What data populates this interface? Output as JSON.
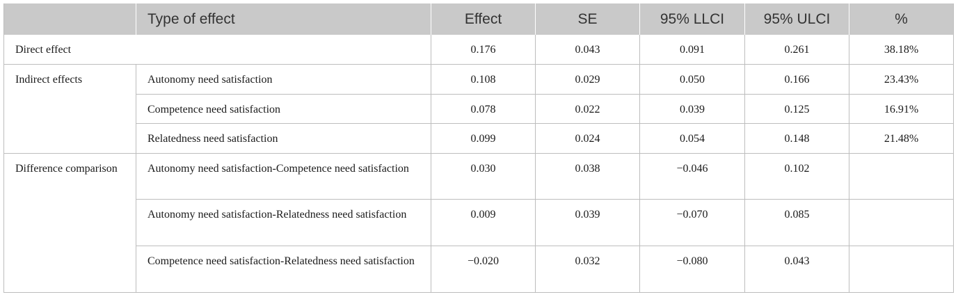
{
  "headers": [
    "",
    "Type of effect",
    "Effect",
    "SE",
    "95% LLCI",
    "95% ULCI",
    "%"
  ],
  "direct": {
    "label": "Direct effect",
    "values": [
      "0.176",
      "0.043",
      "0.091",
      "0.261",
      "38.18%"
    ]
  },
  "indirect": {
    "label": "Indirect effects",
    "rows": [
      {
        "type": "Autonomy need satisfaction",
        "values": [
          "0.108",
          "0.029",
          "0.050",
          "0.166",
          "23.43%"
        ]
      },
      {
        "type": "Competence need satisfaction",
        "values": [
          "0.078",
          "0.022",
          "0.039",
          "0.125",
          "16.91%"
        ]
      },
      {
        "type": "Relatedness need satisfaction",
        "values": [
          "0.099",
          "0.024",
          "0.054",
          "0.148",
          "21.48%"
        ]
      }
    ]
  },
  "difference": {
    "label": "Difference comparison",
    "rows": [
      {
        "type": "Autonomy need satisfaction-Competence need satisfaction",
        "values": [
          "0.030",
          "0.038",
          "−0.046",
          "0.102",
          ""
        ]
      },
      {
        "type": "Autonomy need satisfaction-Relatedness need satisfaction",
        "values": [
          "0.009",
          "0.039",
          "−0.070",
          "0.085",
          ""
        ]
      },
      {
        "type": "Competence need satisfaction-Relatedness need satisfaction",
        "values": [
          "−0.020",
          "0.032",
          "−0.080",
          "0.043",
          ""
        ]
      }
    ]
  }
}
